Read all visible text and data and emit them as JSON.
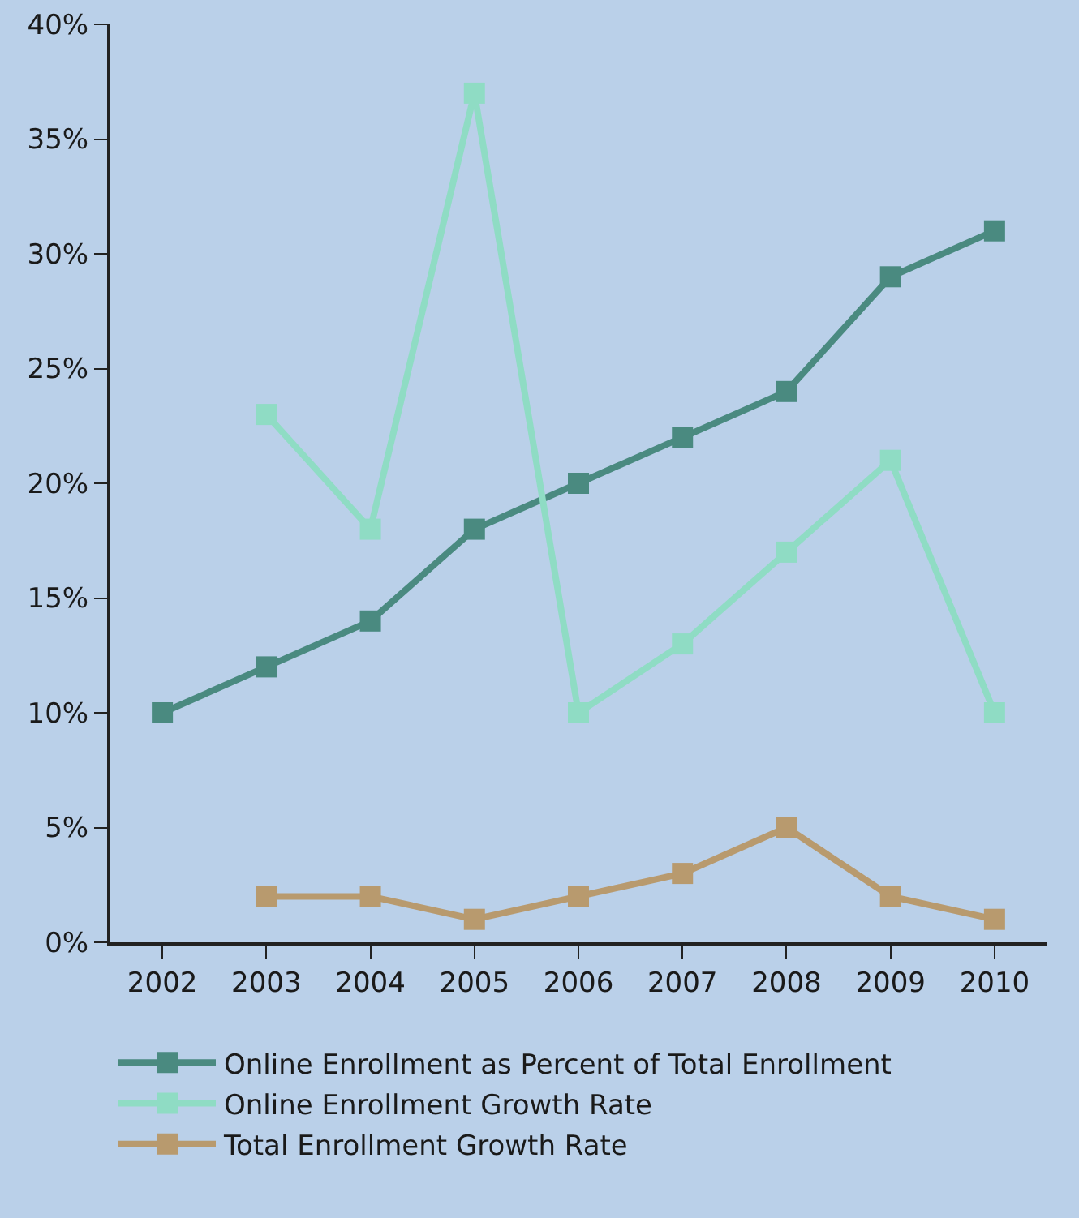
{
  "chart_data": {
    "type": "line",
    "categories": [
      "2002",
      "2003",
      "2004",
      "2005",
      "2006",
      "2007",
      "2008",
      "2009",
      "2010"
    ],
    "series": [
      {
        "name": "Online Enrollment as Percent of Total Enrollment",
        "color": "#4a8a80",
        "values": [
          10,
          12,
          14,
          18,
          20,
          22,
          24,
          29,
          31
        ]
      },
      {
        "name": "Online Enrollment Growth Rate",
        "color": "#8fdcc4",
        "values": [
          null,
          23,
          18,
          37,
          10,
          13,
          17,
          21,
          10
        ]
      },
      {
        "name": "Total Enrollment Growth Rate",
        "color": "#b89a6e",
        "values": [
          null,
          2,
          2,
          1,
          2,
          3,
          5,
          2,
          1
        ]
      }
    ],
    "ylim": [
      0,
      40
    ],
    "yticks": [
      {
        "value": 0,
        "label": "0%"
      },
      {
        "value": 5,
        "label": "5%"
      },
      {
        "value": 10,
        "label": "10%"
      },
      {
        "value": 15,
        "label": "15%"
      },
      {
        "value": 20,
        "label": "20%"
      },
      {
        "value": 25,
        "label": "25%"
      },
      {
        "value": 30,
        "label": "30%"
      },
      {
        "value": 35,
        "label": "35%"
      },
      {
        "value": 40,
        "label": "40%"
      }
    ],
    "grid": false,
    "legend": "bottom",
    "marker": "square",
    "line_style": "solid"
  }
}
